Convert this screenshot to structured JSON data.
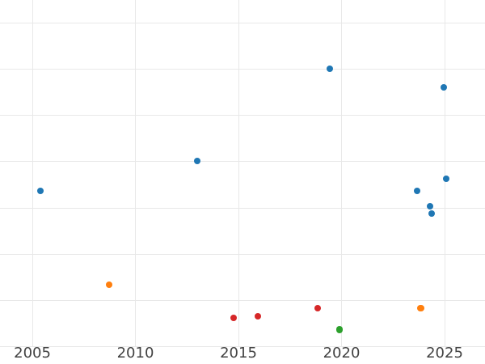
{
  "chart_data": {
    "type": "scatter",
    "title": "",
    "xlabel": "",
    "ylabel": "",
    "legend": "none",
    "x_axis": {
      "tick_labels": [
        "2005",
        "2010",
        "2015",
        "2020",
        "2025"
      ],
      "tick_values": [
        2005,
        2010,
        2015,
        2020,
        2025
      ],
      "range": [
        2003.43,
        2026.96
      ],
      "gridlines": true
    },
    "y_axis": {
      "tick_labels": [],
      "note": "no y-axis tick labels visible; y values estimated in gridline units, bottom gridline = 0, one unit per gridline",
      "gridline_values": [
        0,
        1,
        2,
        3,
        4,
        5,
        6,
        7
      ],
      "range": [
        -0.37,
        7.49
      ],
      "gridlines": true
    },
    "series": [
      {
        "name": "blue",
        "color": "#1f77b4",
        "points": [
          {
            "x": 2005.4,
            "y": 3.37
          },
          {
            "x": 2013.0,
            "y": 4.01
          },
          {
            "x": 2019.43,
            "y": 6.01
          },
          {
            "x": 2023.66,
            "y": 3.37
          },
          {
            "x": 2024.28,
            "y": 3.04
          },
          {
            "x": 2024.38,
            "y": 2.88
          },
          {
            "x": 2024.96,
            "y": 5.6
          },
          {
            "x": 2025.07,
            "y": 3.63
          }
        ]
      },
      {
        "name": "orange",
        "color": "#ff7f0e",
        "points": [
          {
            "x": 2008.73,
            "y": 1.34
          },
          {
            "x": 2023.84,
            "y": 0.84
          }
        ]
      },
      {
        "name": "red",
        "color": "#d62728",
        "points": [
          {
            "x": 2014.76,
            "y": 0.63
          },
          {
            "x": 2015.94,
            "y": 0.66
          },
          {
            "x": 2018.84,
            "y": 0.84
          }
        ]
      },
      {
        "name": "green",
        "color": "#2ca02c",
        "points": [
          {
            "x": 2019.9,
            "y": 0.37
          }
        ]
      }
    ],
    "marker_diameter_px": 8.3
  },
  "style": {
    "background_color": "#ffffff",
    "gridline_color": "#e8e8e8",
    "tick_label_color": "#424242",
    "tick_font_size_px": 18
  }
}
